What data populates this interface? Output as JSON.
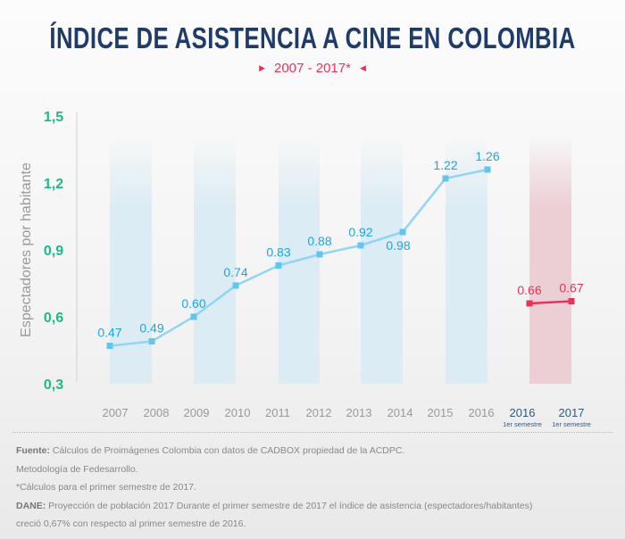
{
  "chart_data": {
    "type": "line",
    "title": "ÍNDICE DE ASISTENCIA A CINE EN COLOMBIA",
    "subtitle": "2007 - 2017*",
    "ylabel": "Espectadores por habitante",
    "ylim": [
      0.3,
      1.5
    ],
    "yticks": [
      "1,5",
      "1,2",
      "0,9",
      "0,6",
      "0,3"
    ],
    "ytick_values": [
      1.5,
      1.2,
      0.9,
      0.6,
      0.3
    ],
    "grid": false,
    "series": [
      {
        "categories": [
          "2007",
          "2008",
          "2009",
          "2010",
          "2011",
          "2012",
          "2013",
          "2014",
          "2015",
          "2016"
        ],
        "values": [
          0.47,
          0.49,
          0.6,
          0.74,
          0.83,
          0.88,
          0.92,
          0.98,
          1.22,
          1.26
        ],
        "labels": [
          "0.47",
          "0.49",
          "0.60",
          "0.74",
          "0.83",
          "0.88",
          "0.92",
          "0.98",
          "1.22",
          "1.26"
        ],
        "color": "#8fd6f5",
        "marker_color": "#5fc6f0",
        "label_color": "#1aa6e6"
      },
      {
        "categories": [
          "2016",
          "2017"
        ],
        "sublabels": [
          "1er semestre",
          "1er semestre"
        ],
        "values": [
          0.66,
          0.67
        ],
        "labels": [
          "0.66",
          "0.67"
        ],
        "color": "#e6335a",
        "marker_color": "#e6335a",
        "label_color": "#e6335a"
      }
    ],
    "colors": {
      "title": "#1d3c6b",
      "axis_ticks": "#1cb98a",
      "band_blue": "#dcecf4",
      "band_red": "#eccfd5"
    }
  },
  "notes": {
    "fuente_label": "Fuente:",
    "fuente_text": " Cálculos de Proimágenes Colombia con datos de CADBOX propiedad de la ACDPC.",
    "line2": "Metodología de Fedesarrollo.",
    "line3": "*Cálculos para el primer semestre de 2017.",
    "dane_label": "DANE:",
    "dane_text": " Proyección de población 2017 Durante el primer semestre de 2017 el índice de asistencia (espectadores/habitantes)",
    "line5": "creció 0,67% con respecto al primer semestre de 2016."
  }
}
